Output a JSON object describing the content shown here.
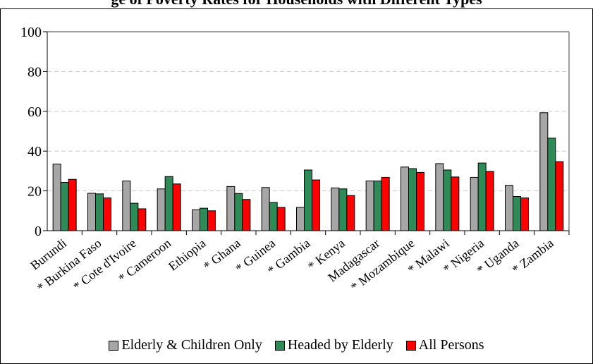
{
  "page": {
    "partial_title": "ge of Poverty Rates for Households with Different Types"
  },
  "chart_data": {
    "type": "bar",
    "title": "",
    "xlabel": "",
    "ylabel": "",
    "ylim": [
      0,
      100
    ],
    "yticks": [
      0,
      20,
      40,
      60,
      80,
      100
    ],
    "grid": true,
    "legend_position": "bottom",
    "categories": [
      "Burundi",
      "* Burkina Faso",
      "* Cote d'Ivoire",
      "* Cameroon",
      "Ethiopia",
      "* Ghana",
      "* Guinea",
      "* Gambia",
      "* Kenya",
      "Madagascar",
      "* Mozambique",
      "* Malawi",
      "* Nigeria",
      "* Uganda",
      "* Zambia"
    ],
    "series": [
      {
        "name": "Elderly & Children Only",
        "color": "#a6a6a6",
        "values": [
          33.5,
          18.8,
          25.0,
          21.0,
          10.5,
          22.2,
          21.7,
          11.7,
          21.5,
          25.0,
          32.0,
          33.7,
          26.8,
          22.8,
          59.3
        ]
      },
      {
        "name": "Headed by Elderly",
        "color": "#2e8b57",
        "values": [
          24.3,
          18.5,
          13.8,
          27.2,
          11.3,
          18.7,
          14.2,
          30.5,
          21.0,
          25.0,
          31.2,
          30.5,
          34.0,
          17.2,
          46.5
        ]
      },
      {
        "name": "All Persons",
        "color": "#ff0000",
        "values": [
          25.8,
          16.5,
          11.0,
          23.5,
          10.0,
          15.7,
          11.7,
          25.5,
          17.7,
          26.8,
          29.3,
          27.0,
          29.8,
          16.5,
          34.7
        ]
      }
    ]
  }
}
